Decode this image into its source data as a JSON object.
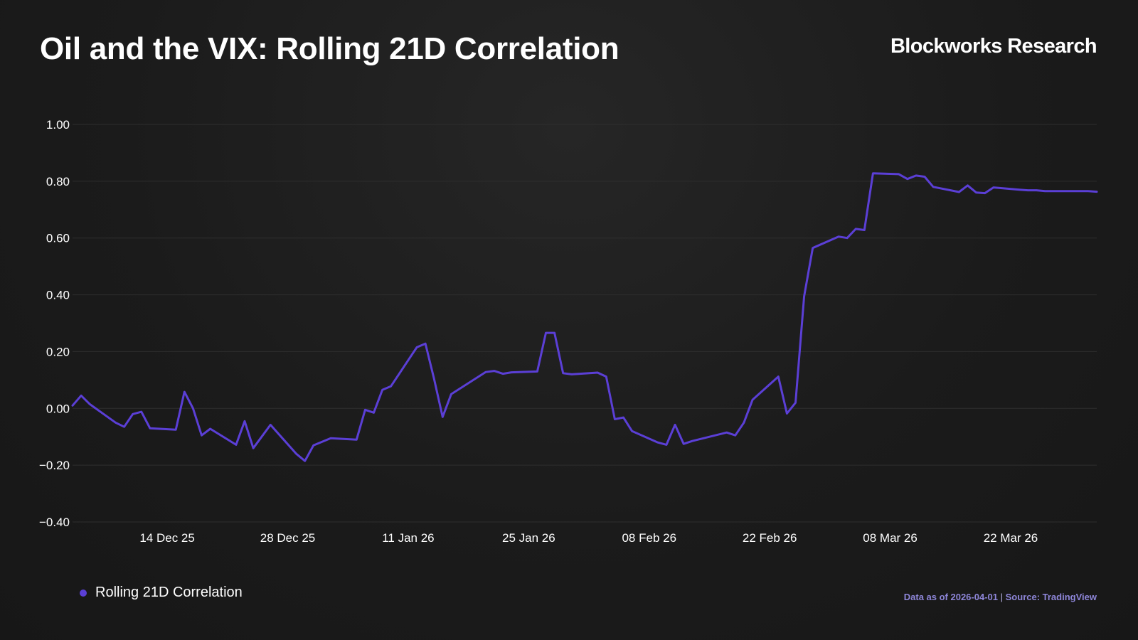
{
  "header": {
    "title": "Oil and the VIX: Rolling 21D Correlation",
    "brand": "Blockworks Research"
  },
  "footer": {
    "as_of": "Data as of 2026-04-01",
    "separator": "|",
    "source": "Source: TradingView"
  },
  "colors": {
    "line": "#5b3fd6",
    "grid": "#2e2e2e",
    "tick_text": "#ffffff",
    "source_text": "#8e86d9"
  },
  "chart_data": {
    "type": "line",
    "title": "Oil and the VIX: Rolling 21D Correlation",
    "xlabel": "",
    "ylabel": "",
    "ylim": [
      -0.4,
      1.0
    ],
    "xlim": [
      "2025-12-03",
      "2026-04-01"
    ],
    "grid": true,
    "legend_position": "bottom-left",
    "y_ticks": [
      1.0,
      0.8,
      0.6,
      0.4,
      0.2,
      0.0,
      -0.2,
      -0.4
    ],
    "y_tick_labels": [
      "1.00",
      "0.80",
      "0.60",
      "0.40",
      "0.20",
      "0.00",
      "−0.20",
      "−0.40"
    ],
    "x_ticks": [
      {
        "date": "2025-12-14",
        "label": "14 Dec 25"
      },
      {
        "date": "2025-12-28",
        "label": "28 Dec 25"
      },
      {
        "date": "2026-01-11",
        "label": "11 Jan 26"
      },
      {
        "date": "2026-01-25",
        "label": "25 Jan 26"
      },
      {
        "date": "2026-02-08",
        "label": "08 Feb 26"
      },
      {
        "date": "2026-02-22",
        "label": "22 Feb 26"
      },
      {
        "date": "2026-03-08",
        "label": "08 Mar 26"
      },
      {
        "date": "2026-03-22",
        "label": "22 Mar 26"
      }
    ],
    "series": [
      {
        "name": "Rolling 21D Correlation",
        "color": "#5b3fd6",
        "x": [
          "2025-12-03",
          "2025-12-04",
          "2025-12-05",
          "2025-12-08",
          "2025-12-09",
          "2025-12-10",
          "2025-12-11",
          "2025-12-12",
          "2025-12-15",
          "2025-12-16",
          "2025-12-17",
          "2025-12-18",
          "2025-12-19",
          "2025-12-22",
          "2025-12-23",
          "2025-12-24",
          "2025-12-26",
          "2025-12-29",
          "2025-12-30",
          "2025-12-31",
          "2026-01-02",
          "2026-01-05",
          "2026-01-06",
          "2026-01-07",
          "2026-01-08",
          "2026-01-09",
          "2026-01-12",
          "2026-01-13",
          "2026-01-14",
          "2026-01-15",
          "2026-01-16",
          "2026-01-20",
          "2026-01-21",
          "2026-01-22",
          "2026-01-23",
          "2026-01-26",
          "2026-01-27",
          "2026-01-28",
          "2026-01-29",
          "2026-01-30",
          "2026-02-02",
          "2026-02-03",
          "2026-02-04",
          "2026-02-05",
          "2026-02-06",
          "2026-02-09",
          "2026-02-10",
          "2026-02-11",
          "2026-02-12",
          "2026-02-13",
          "2026-02-17",
          "2026-02-18",
          "2026-02-19",
          "2026-02-20",
          "2026-02-23",
          "2026-02-24",
          "2026-02-25",
          "2026-02-26",
          "2026-02-27",
          "2026-03-02",
          "2026-03-03",
          "2026-03-04",
          "2026-03-05",
          "2026-03-06",
          "2026-03-09",
          "2026-03-10",
          "2026-03-11",
          "2026-03-12",
          "2026-03-13",
          "2026-03-16",
          "2026-03-17",
          "2026-03-18",
          "2026-03-19",
          "2026-03-20",
          "2026-03-23",
          "2026-03-24",
          "2026-03-25",
          "2026-03-26",
          "2026-03-27",
          "2026-03-30",
          "2026-03-31",
          "2026-04-01"
        ],
        "values": [
          0.01,
          0.045,
          0.015,
          -0.05,
          -0.065,
          -0.02,
          -0.012,
          -0.07,
          -0.075,
          0.058,
          0.0,
          -0.095,
          -0.072,
          -0.128,
          -0.045,
          -0.14,
          -0.058,
          -0.16,
          -0.185,
          -0.13,
          -0.105,
          -0.11,
          -0.005,
          -0.015,
          0.065,
          0.078,
          0.215,
          0.228,
          0.105,
          -0.03,
          0.05,
          0.128,
          0.132,
          0.122,
          0.127,
          0.13,
          0.266,
          0.266,
          0.124,
          0.12,
          0.126,
          0.112,
          -0.038,
          -0.032,
          -0.08,
          -0.12,
          -0.128,
          -0.058,
          -0.125,
          -0.115,
          -0.085,
          -0.095,
          -0.05,
          0.03,
          0.112,
          -0.018,
          0.02,
          0.395,
          0.565,
          0.605,
          0.6,
          0.632,
          0.628,
          0.828,
          0.825,
          0.808,
          0.82,
          0.816,
          0.78,
          0.762,
          0.785,
          0.76,
          0.758,
          0.778,
          0.77,
          0.768,
          0.768,
          0.765,
          0.765,
          0.765,
          0.765,
          0.763
        ]
      }
    ]
  }
}
